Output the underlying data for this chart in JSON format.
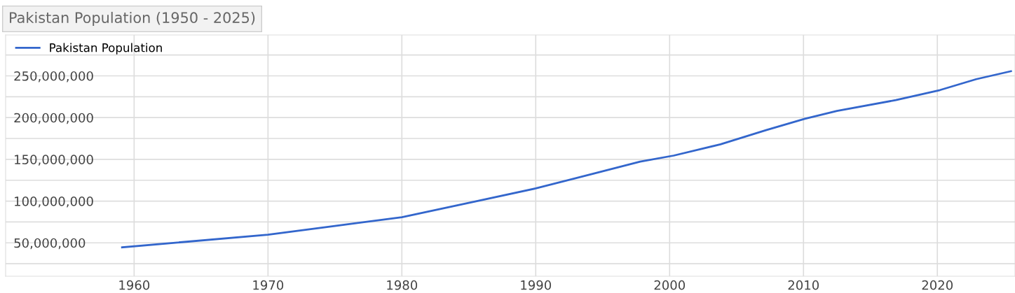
{
  "chart_data": {
    "type": "line",
    "title": "Pakistan Population (1950 - 2025)",
    "series": [
      {
        "name": "Pakistan Population",
        "color": "#3366cc",
        "x": [
          1959.1,
          1970,
          1975,
          1980,
          1985.6,
          1990,
          1994.3,
          1997.8,
          2000.3,
          2003.8,
          2007.2,
          2010.1,
          2012.5,
          2016.9,
          2020.2,
          2022.9,
          2025.5
        ],
        "values": [
          44600000,
          59800000,
          70200000,
          80700000,
          100000000,
          115200000,
          132800000,
          147300000,
          154500000,
          168000000,
          185000000,
          198600000,
          208000000,
          221000000,
          233000000,
          246000000,
          255600000
        ]
      }
    ],
    "xlim": [
      1950.4,
      2025.8
    ],
    "ylim": [
      10000000,
      299000000
    ],
    "xticks": [
      1960,
      1970,
      1980,
      1990,
      2000,
      2010,
      2020
    ],
    "yticks": [
      {
        "value": 25000000,
        "label": null
      },
      {
        "value": 50000000,
        "label": "50,000,000"
      },
      {
        "value": 75000000,
        "label": null
      },
      {
        "value": 100000000,
        "label": "100,000,000"
      },
      {
        "value": 125000000,
        "label": null
      },
      {
        "value": 150000000,
        "label": "150,000,000"
      },
      {
        "value": 175000000,
        "label": null
      },
      {
        "value": 200000000,
        "label": "200,000,000"
      },
      {
        "value": 225000000,
        "label": null
      },
      {
        "value": 250000000,
        "label": "250,000,000"
      },
      {
        "value": 275000000,
        "label": null
      }
    ],
    "grid": true,
    "legend": "top left",
    "marker": "none",
    "line_style": "solid"
  }
}
